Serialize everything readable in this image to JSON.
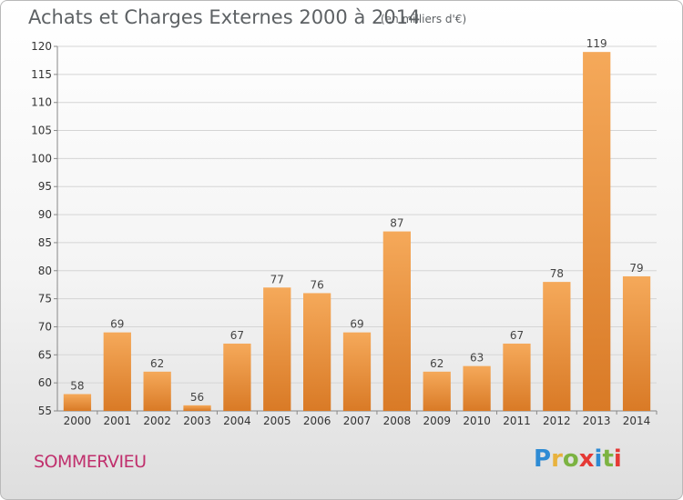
{
  "header": {
    "title": "Achats et Charges Externes 2000 à 2014",
    "unit": "(en milliers d'€)"
  },
  "footer": {
    "place": "SOMMERVIEU",
    "logo": "Proxiti"
  },
  "colors": {
    "bar_light": "#f5a95a",
    "bar_dark": "#d97a26",
    "place": "#c0306d",
    "grid": "#d5d5d5"
  },
  "chart_data": {
    "type": "bar",
    "title": "Achats et Charges Externes 2000 à 2014",
    "subtitle": "(en milliers d'€)",
    "xlabel": "",
    "ylabel": "",
    "categories": [
      "2000",
      "2001",
      "2002",
      "2003",
      "2004",
      "2005",
      "2006",
      "2007",
      "2008",
      "2009",
      "2010",
      "2011",
      "2012",
      "2013",
      "2014"
    ],
    "values": [
      58,
      69,
      62,
      56,
      67,
      77,
      76,
      69,
      87,
      62,
      63,
      67,
      78,
      119,
      79
    ],
    "ylim": [
      55,
      120
    ],
    "yticks": [
      55,
      60,
      65,
      70,
      75,
      80,
      85,
      90,
      95,
      100,
      105,
      110,
      115,
      120
    ],
    "grid": true,
    "legend": "none"
  }
}
